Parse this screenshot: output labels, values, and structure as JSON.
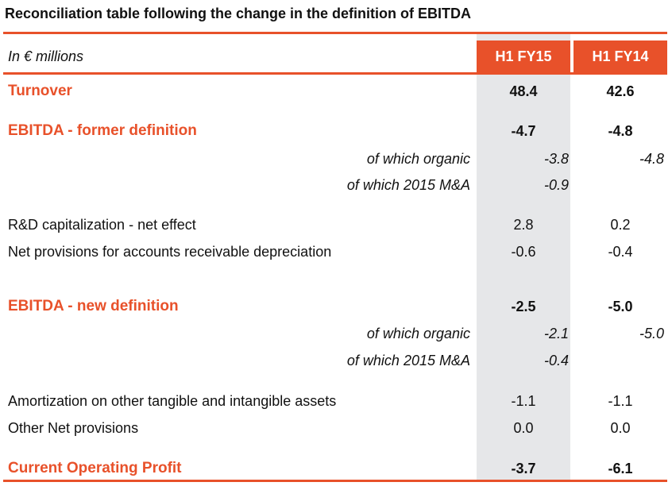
{
  "title": "Reconciliation table following the change in the definition of EBITDA",
  "header": {
    "unit_label": "In € millions",
    "col_a": "H1 FY15",
    "col_b": "H1 FY14"
  },
  "colors": {
    "accent": "#e8512a",
    "shade": "#e6e7e9"
  },
  "rows": [
    {
      "label": "Turnover",
      "a": "48.4",
      "b": "42.6",
      "style": "head"
    },
    {
      "label": "EBITDA - former definition",
      "a": "-4.7",
      "b": "-4.8",
      "style": "head"
    },
    {
      "label": "of which organic",
      "a": "-3.8",
      "b": "-4.8",
      "style": "sub"
    },
    {
      "label": "of which 2015 M&A",
      "a": "-0.9",
      "b": "",
      "style": "sub"
    },
    {
      "label": "R&D capitalization - net effect",
      "a": "2.8",
      "b": "0.2",
      "style": "normal"
    },
    {
      "label": "Net provisions for accounts receivable depreciation",
      "a": "-0.6",
      "b": "-0.4",
      "style": "normal"
    },
    {
      "label": "EBITDA - new definition",
      "a": "-2.5",
      "b": "-5.0",
      "style": "head"
    },
    {
      "label": "of which organic",
      "a": "-2.1",
      "b": "-5.0",
      "style": "sub"
    },
    {
      "label": "of which 2015 M&A",
      "a": "-0.4",
      "b": "",
      "style": "sub"
    },
    {
      "label": "Amortization on other tangible and intangible assets",
      "a": "-1.1",
      "b": "-1.1",
      "style": "normal"
    },
    {
      "label": "Other Net provisions",
      "a": "0.0",
      "b": "0.0",
      "style": "normal"
    },
    {
      "label": "Current Operating Profit",
      "a": "-3.7",
      "b": "-6.1",
      "style": "head"
    }
  ]
}
